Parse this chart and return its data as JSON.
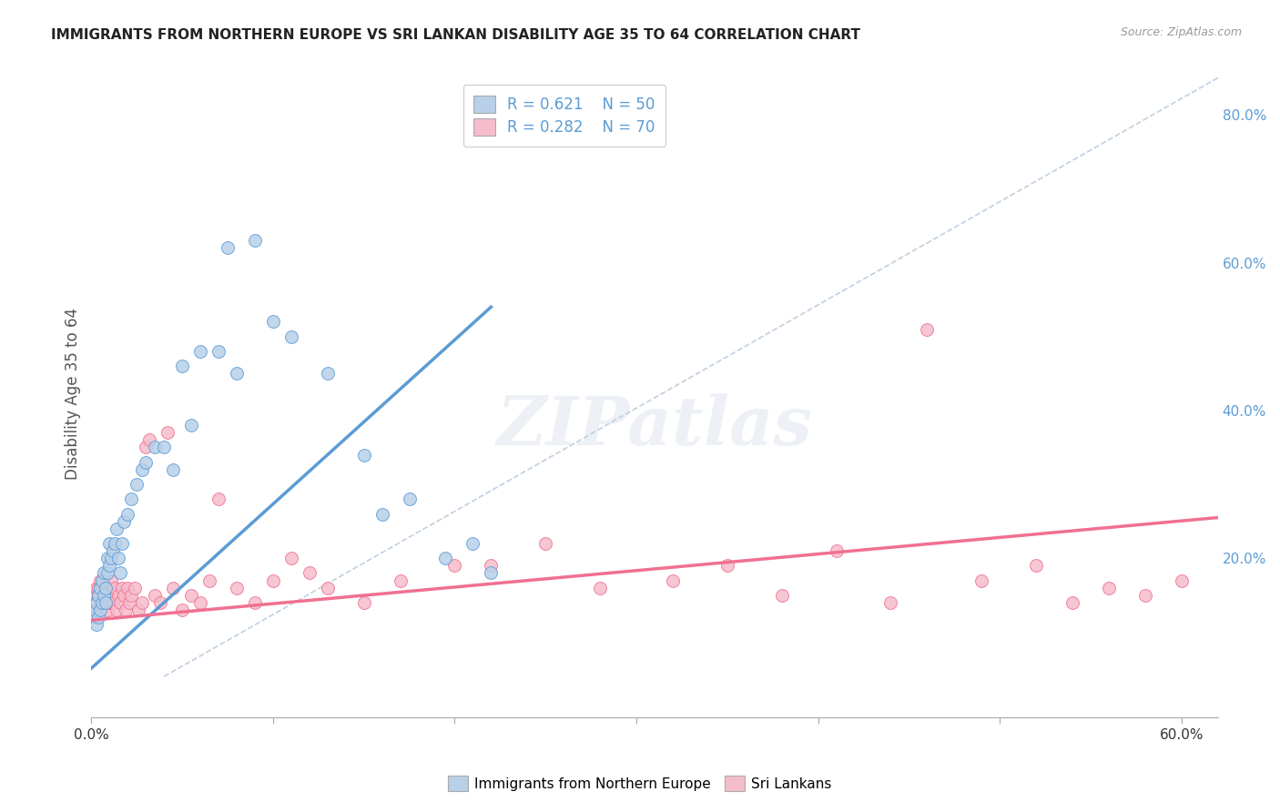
{
  "title": "IMMIGRANTS FROM NORTHERN EUROPE VS SRI LANKAN DISABILITY AGE 35 TO 64 CORRELATION CHART",
  "source": "Source: ZipAtlas.com",
  "ylabel": "Disability Age 35 to 64",
  "xlim": [
    0.0,
    0.62
  ],
  "ylim": [
    -0.015,
    0.86
  ],
  "yticks_right": [
    0.0,
    0.2,
    0.4,
    0.6,
    0.8
  ],
  "ytick_right_labels": [
    "",
    "20.0%",
    "40.0%",
    "60.0%",
    "80.0%"
  ],
  "blue_color": "#b8d0e8",
  "pink_color": "#f5bccb",
  "blue_line_color": "#5b9bd5",
  "pink_line_color": "#f07090",
  "background_color": "#ffffff",
  "grid_color": "#e8e8e8",
  "title_fontsize": 11,
  "axis_label_color": "#5b9bd5",
  "watermark_color": "#ccd8e8",
  "watermark_alpha": 0.35,
  "ref_line_color": "#c0cfe0",
  "blue_scatter_x": [
    0.001,
    0.002,
    0.003,
    0.003,
    0.004,
    0.004,
    0.005,
    0.005,
    0.006,
    0.006,
    0.007,
    0.007,
    0.008,
    0.008,
    0.009,
    0.009,
    0.01,
    0.01,
    0.011,
    0.012,
    0.013,
    0.014,
    0.015,
    0.016,
    0.017,
    0.018,
    0.02,
    0.022,
    0.025,
    0.028,
    0.03,
    0.035,
    0.04,
    0.045,
    0.05,
    0.055,
    0.06,
    0.07,
    0.075,
    0.08,
    0.09,
    0.1,
    0.11,
    0.13,
    0.15,
    0.16,
    0.175,
    0.195,
    0.21,
    0.22
  ],
  "blue_scatter_y": [
    0.12,
    0.13,
    0.11,
    0.14,
    0.12,
    0.15,
    0.13,
    0.16,
    0.14,
    0.17,
    0.15,
    0.18,
    0.14,
    0.16,
    0.18,
    0.2,
    0.19,
    0.22,
    0.2,
    0.21,
    0.22,
    0.24,
    0.2,
    0.18,
    0.22,
    0.25,
    0.26,
    0.28,
    0.3,
    0.32,
    0.33,
    0.35,
    0.35,
    0.32,
    0.46,
    0.38,
    0.48,
    0.48,
    0.62,
    0.45,
    0.63,
    0.52,
    0.5,
    0.45,
    0.34,
    0.26,
    0.28,
    0.2,
    0.22,
    0.18
  ],
  "pink_scatter_x": [
    0.001,
    0.002,
    0.002,
    0.003,
    0.003,
    0.004,
    0.004,
    0.005,
    0.005,
    0.006,
    0.006,
    0.007,
    0.007,
    0.008,
    0.008,
    0.009,
    0.009,
    0.01,
    0.01,
    0.011,
    0.011,
    0.012,
    0.013,
    0.014,
    0.015,
    0.016,
    0.017,
    0.018,
    0.019,
    0.02,
    0.021,
    0.022,
    0.024,
    0.026,
    0.028,
    0.03,
    0.032,
    0.035,
    0.038,
    0.042,
    0.045,
    0.05,
    0.055,
    0.06,
    0.065,
    0.07,
    0.08,
    0.09,
    0.1,
    0.11,
    0.12,
    0.13,
    0.15,
    0.17,
    0.2,
    0.22,
    0.25,
    0.28,
    0.32,
    0.35,
    0.38,
    0.41,
    0.44,
    0.46,
    0.49,
    0.52,
    0.54,
    0.56,
    0.58,
    0.6
  ],
  "pink_scatter_y": [
    0.14,
    0.15,
    0.13,
    0.16,
    0.14,
    0.15,
    0.16,
    0.13,
    0.17,
    0.14,
    0.16,
    0.15,
    0.17,
    0.14,
    0.16,
    0.15,
    0.13,
    0.16,
    0.14,
    0.17,
    0.15,
    0.14,
    0.16,
    0.13,
    0.15,
    0.14,
    0.16,
    0.15,
    0.13,
    0.16,
    0.14,
    0.15,
    0.16,
    0.13,
    0.14,
    0.35,
    0.36,
    0.15,
    0.14,
    0.37,
    0.16,
    0.13,
    0.15,
    0.14,
    0.17,
    0.28,
    0.16,
    0.14,
    0.17,
    0.2,
    0.18,
    0.16,
    0.14,
    0.17,
    0.19,
    0.19,
    0.22,
    0.16,
    0.17,
    0.19,
    0.15,
    0.21,
    0.14,
    0.51,
    0.17,
    0.19,
    0.14,
    0.16,
    0.15,
    0.17
  ],
  "blue_line_x0": -0.005,
  "blue_line_x1": 0.22,
  "blue_line_y0": 0.04,
  "blue_line_y1": 0.54,
  "pink_line_x0": -0.005,
  "pink_line_x1": 0.62,
  "pink_line_y0": 0.115,
  "pink_line_y1": 0.255,
  "ref_line_x0": 0.04,
  "ref_line_x1": 0.62,
  "ref_line_y0": 0.04,
  "ref_line_y1": 0.85
}
